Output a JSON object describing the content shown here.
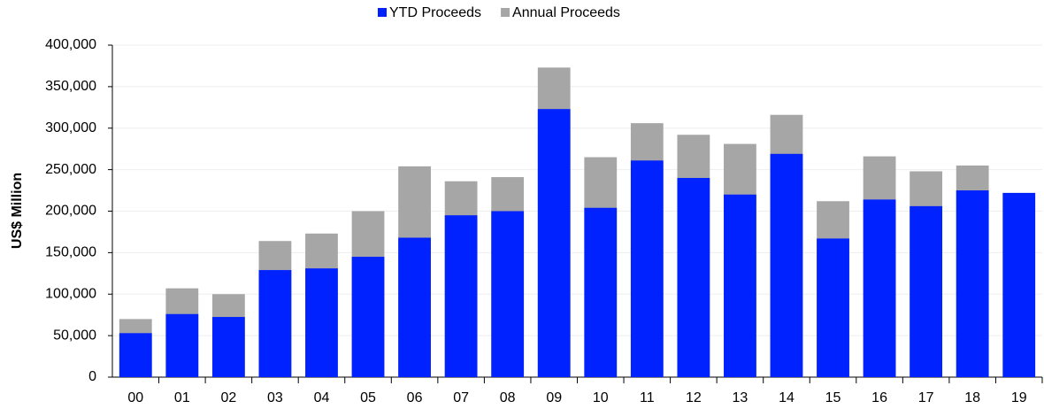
{
  "chart_data": {
    "type": "bar",
    "barmode": "overlay",
    "ylabel": "US$ Million",
    "categories": [
      "00",
      "01",
      "02",
      "03",
      "04",
      "05",
      "06",
      "07",
      "08",
      "09",
      "10",
      "11",
      "12",
      "13",
      "14",
      "15",
      "16",
      "17",
      "18",
      "19"
    ],
    "series": [
      {
        "name": "YTD Proceeds",
        "color": "#0022ff",
        "values": [
          53000,
          76000,
          72500,
          129000,
          131000,
          145000,
          168000,
          195000,
          200000,
          323000,
          204000,
          261000,
          240000,
          220000,
          269000,
          167000,
          214000,
          206000,
          225000,
          222000
        ]
      },
      {
        "name": "Annual Proceeds",
        "color": "#a6a6a6",
        "values": [
          70000,
          107000,
          100000,
          164000,
          173000,
          200000,
          254000,
          236000,
          241000,
          373000,
          265000,
          306000,
          292000,
          281000,
          316000,
          212000,
          266000,
          248000,
          255000,
          null
        ]
      }
    ],
    "ylim": [
      0,
      400000
    ],
    "yticks": [
      0,
      {
        "value": 50000,
        "label": "50,000"
      },
      {
        "value": 100000,
        "label": "100,000"
      },
      {
        "value": 150000,
        "label": "150,000"
      },
      {
        "value": 200000,
        "label": "200,000"
      },
      {
        "value": 250000,
        "label": "250,000"
      },
      {
        "value": 300000,
        "label": "300,000"
      },
      {
        "value": 350000,
        "label": "350,000"
      },
      {
        "value": 400000,
        "label": "400,000"
      }
    ],
    "grid": true,
    "legend": "top"
  }
}
